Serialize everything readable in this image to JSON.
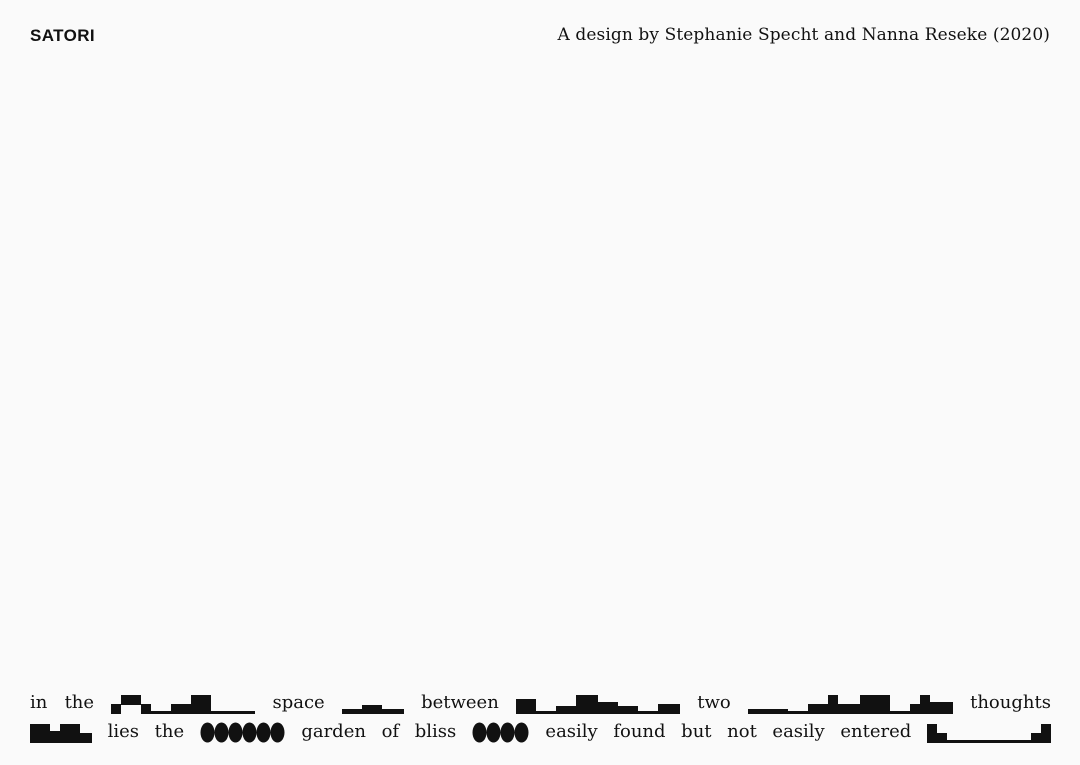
{
  "header": {
    "brand": "SATORI",
    "credit": "A design by Stephanie Specht and Nanna Reseke (2020)"
  },
  "poem": {
    "line1": [
      "in",
      "the",
      "space",
      "between",
      "two",
      "thoughts"
    ],
    "line2": [
      "lies",
      "the",
      "garden",
      "of",
      "bliss",
      "easily",
      "found",
      "but",
      "not",
      "easily",
      "entered"
    ]
  }
}
